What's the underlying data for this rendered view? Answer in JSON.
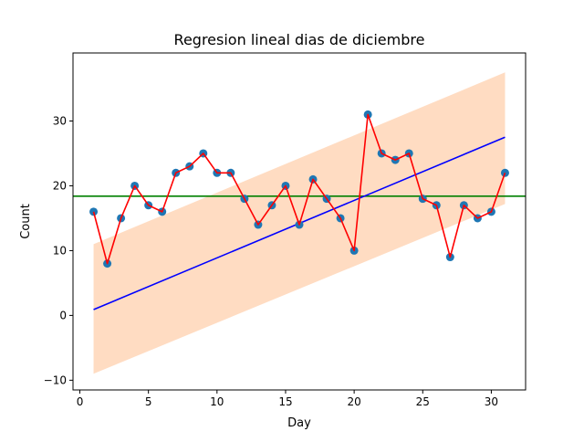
{
  "chart_data": {
    "type": "line",
    "title": "Regresion lineal dias de diciembre",
    "xlabel": "Day",
    "ylabel": "Count",
    "xlim": [
      -0.5,
      32.5
    ],
    "ylim": [
      -11.5,
      40.5
    ],
    "x_ticks": [
      0,
      5,
      10,
      15,
      20,
      25,
      30
    ],
    "y_ticks": [
      -10,
      0,
      10,
      20,
      30
    ],
    "grid": false,
    "legend": "none",
    "x": [
      1,
      2,
      3,
      4,
      5,
      6,
      7,
      8,
      9,
      10,
      11,
      12,
      13,
      14,
      15,
      16,
      17,
      18,
      19,
      20,
      21,
      22,
      23,
      24,
      25,
      26,
      27,
      28,
      29,
      30,
      31
    ],
    "series": [
      {
        "kind": "scatter",
        "color": "#1f77b4",
        "values": [
          16,
          8,
          15,
          20,
          17,
          16,
          22,
          23,
          25,
          22,
          22,
          18,
          14,
          17,
          20,
          14,
          21,
          18,
          15,
          10,
          31,
          25,
          24,
          25,
          18,
          17,
          9,
          17,
          15,
          16,
          22
        ]
      },
      {
        "kind": "line",
        "color": "#ff0000",
        "values": [
          16,
          8,
          15,
          20,
          17,
          16,
          22,
          23,
          25,
          22,
          22,
          18,
          14,
          17,
          20,
          14,
          21,
          18,
          15,
          10,
          31,
          25,
          24,
          25,
          18,
          17,
          9,
          17,
          15,
          16,
          22
        ]
      },
      {
        "kind": "regression-line",
        "color": "#0000ff",
        "x": [
          1,
          31
        ],
        "values": [
          0.9,
          27.5
        ]
      },
      {
        "kind": "prediction-band",
        "color": "#ffdcc2",
        "x": [
          1,
          31
        ],
        "lower": [
          -9.0,
          17.2
        ],
        "upper": [
          11.0,
          37.5
        ]
      },
      {
        "kind": "mean-line",
        "color": "#008000",
        "value": 18.4
      }
    ]
  }
}
